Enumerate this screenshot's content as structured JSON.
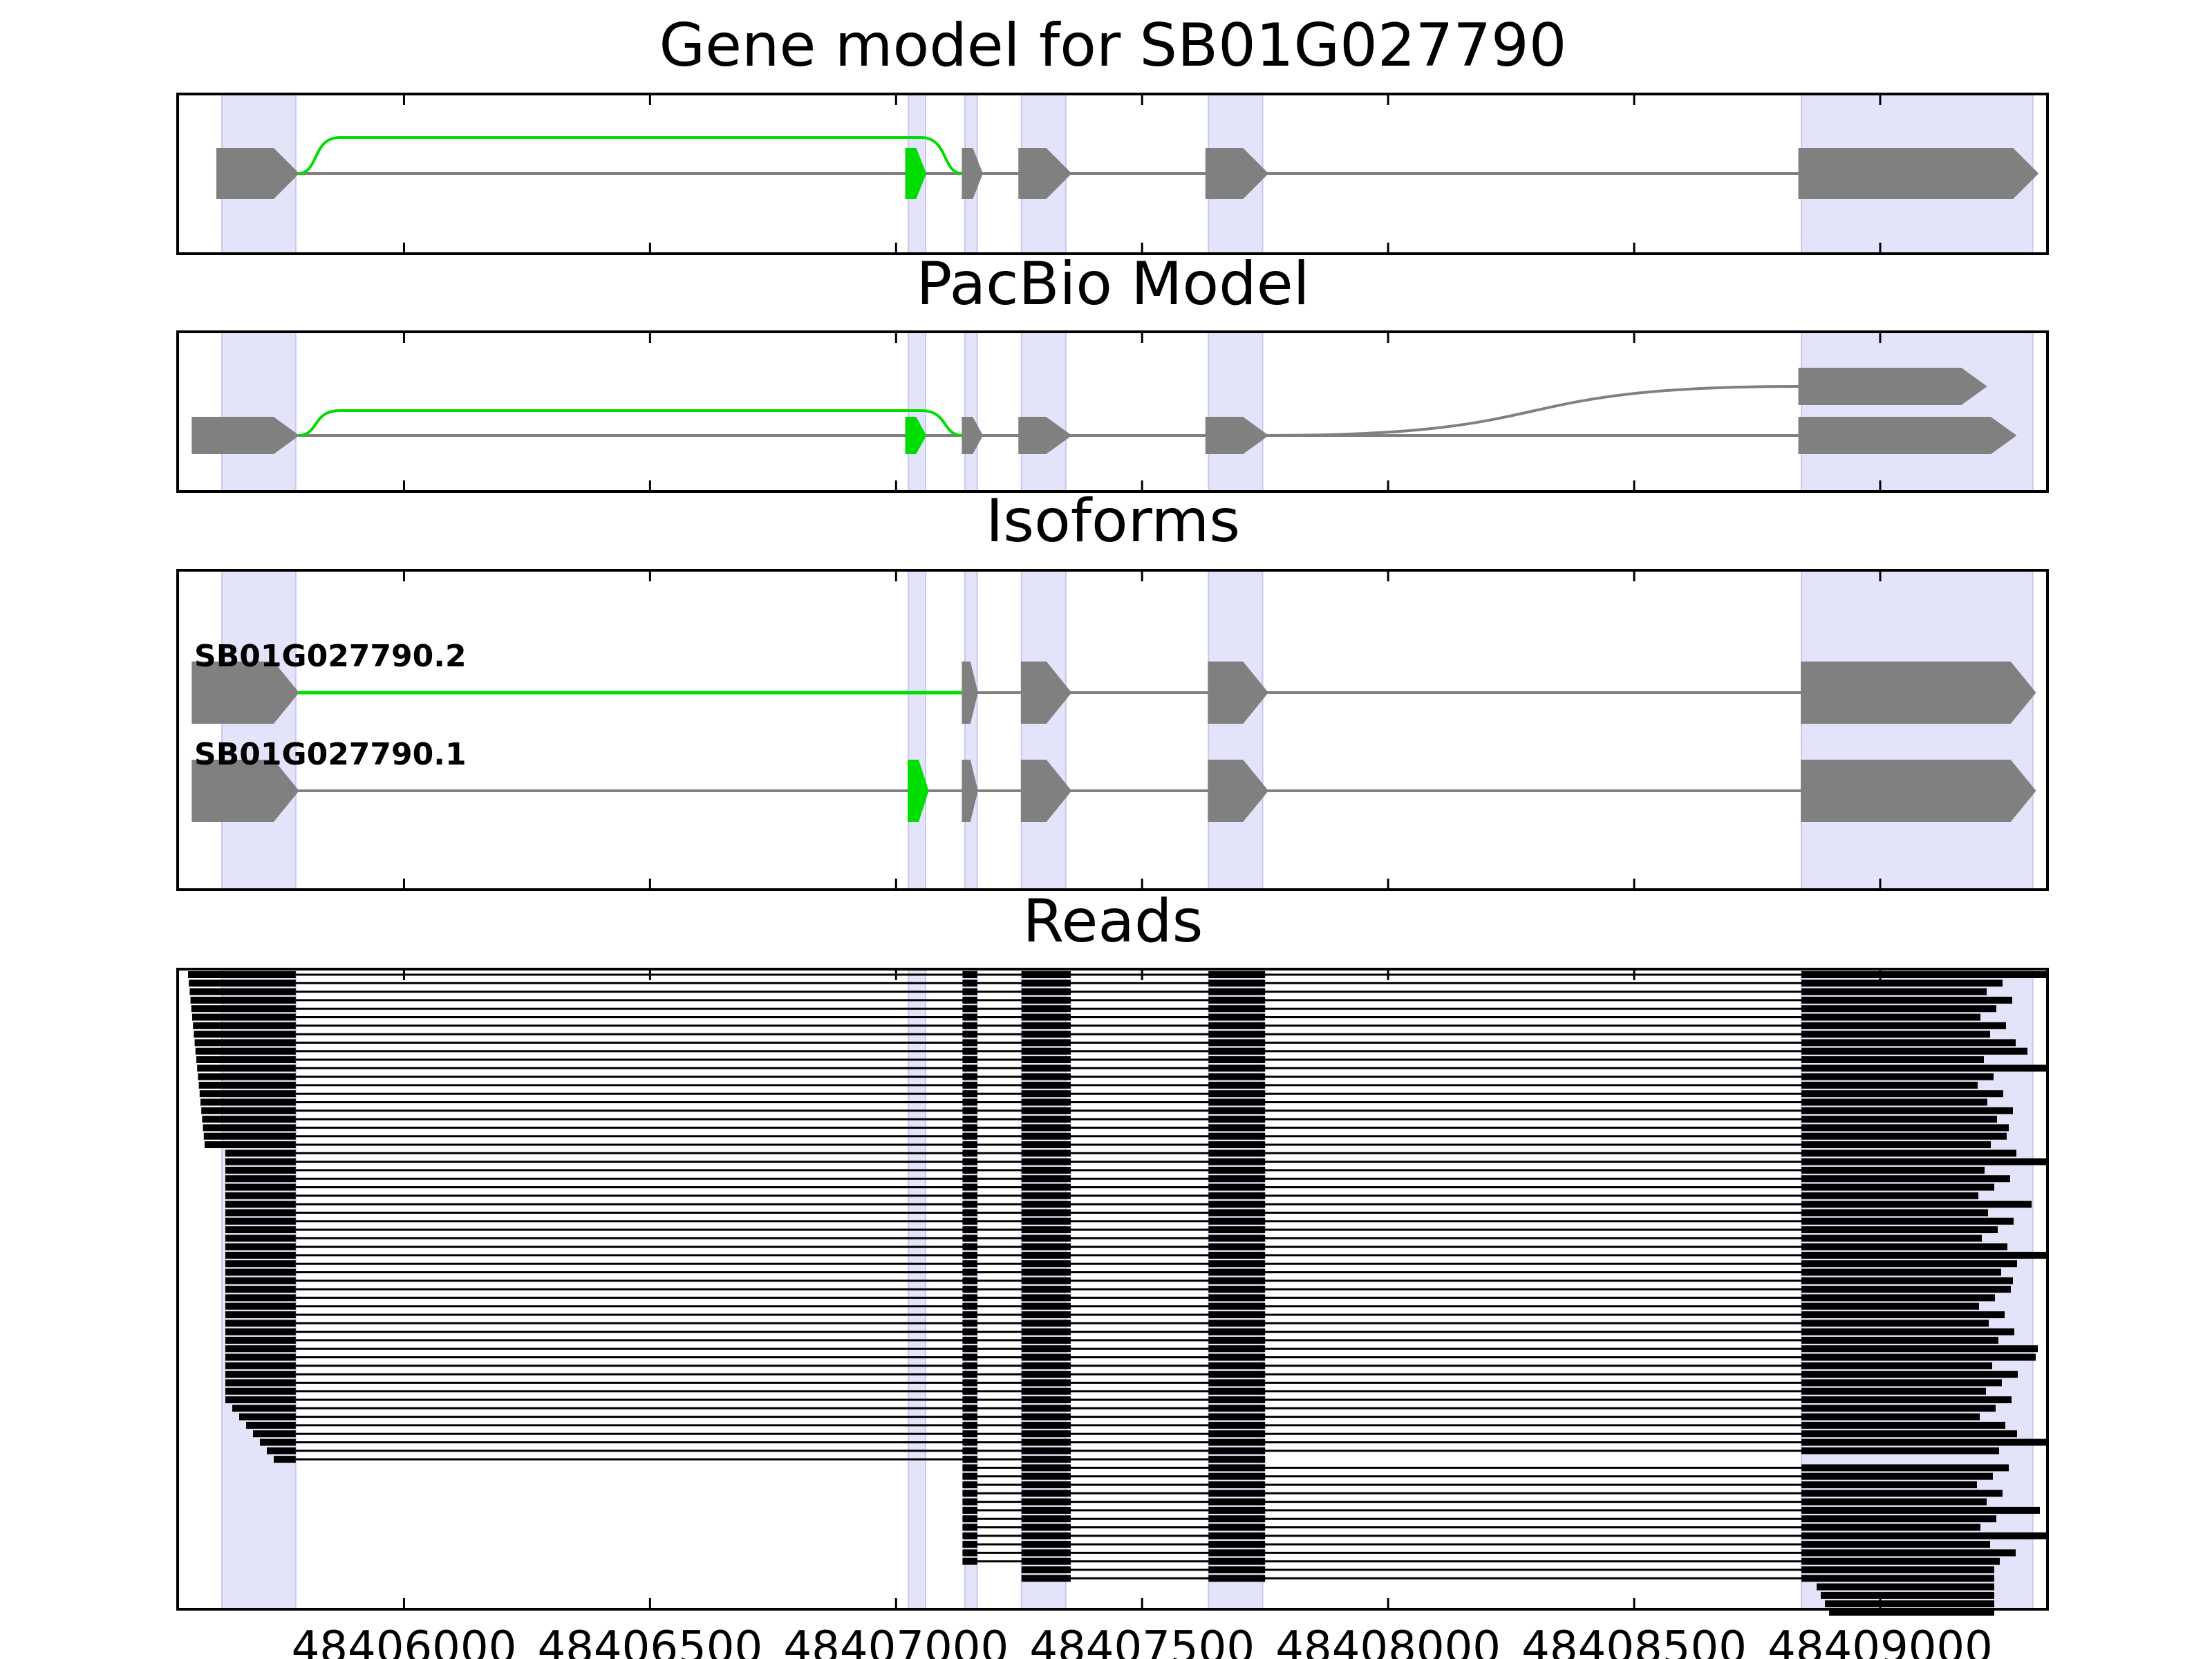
{
  "colors": {
    "exon": "#808080",
    "intron": "#808080",
    "alt_splice": "#00dd00",
    "highlight": "#e3e3fa",
    "read": "#000000",
    "frame": "#000000"
  },
  "panels": {
    "gene_model": {
      "title": "Gene model for SB01G027790"
    },
    "pacbio": {
      "title": "PacBio Model"
    },
    "isoforms": {
      "title": "Isoforms"
    },
    "reads": {
      "title": "Reads"
    }
  },
  "chart_data": {
    "type": "gene-model-tracks",
    "x_range": [
      48405540,
      48409340
    ],
    "x_ticks": [
      48406000,
      48406500,
      48407000,
      48407500,
      48408000,
      48408500,
      48409000
    ],
    "x_tick_labels": [
      "48406000",
      "48406500",
      "48407000",
      "48407500",
      "48408000",
      "48408500",
      "48409000"
    ],
    "highlight_regions": [
      [
        48405630,
        48405780
      ],
      [
        48407025,
        48407060
      ],
      [
        48407140,
        48407165
      ],
      [
        48407255,
        48407345
      ],
      [
        48407635,
        48407745
      ],
      [
        48408840,
        48409310
      ]
    ],
    "gene_model": {
      "exons": [
        [
          48405620,
          48405785
        ],
        [
          48407020,
          48407060
        ],
        [
          48407135,
          48407175
        ],
        [
          48407250,
          48407355
        ],
        [
          48407630,
          48407755
        ],
        [
          48408835,
          48409320
        ]
      ],
      "green_exon": [
        48407020,
        48407060
      ],
      "alt_junction": [
        48405785,
        48407135
      ]
    },
    "pacbio_model": {
      "main_exons": [
        [
          48405570,
          48405785
        ],
        [
          48407020,
          48407060
        ],
        [
          48407135,
          48407175
        ],
        [
          48407250,
          48407355
        ],
        [
          48407630,
          48407755
        ],
        [
          48408835,
          48409275
        ]
      ],
      "alt_end_exon": [
        48408835,
        48409215
      ],
      "green_exon": [
        48407020,
        48407060
      ],
      "alt_junction": [
        48405785,
        48407135
      ]
    },
    "isoforms": [
      {
        "name": "SB01G027790.2",
        "exons": [
          [
            48405570,
            48405785
          ],
          [
            48407135,
            48407165
          ],
          [
            48407255,
            48407355
          ],
          [
            48407635,
            48407755
          ],
          [
            48408840,
            48409315
          ]
        ],
        "green_intron": [
          48405785,
          48407135
        ]
      },
      {
        "name": "SB01G027790.1",
        "exons": [
          [
            48405570,
            48405785
          ],
          [
            48407025,
            48407065
          ],
          [
            48407135,
            48407165
          ],
          [
            48407255,
            48407355
          ],
          [
            48407635,
            48407755
          ],
          [
            48408840,
            48409315
          ]
        ],
        "green_exon": [
          48407025,
          48407065
        ]
      }
    ],
    "reads": {
      "count": 70,
      "exon_blocks": [
        [
          48407135,
          48407165
        ],
        [
          48407255,
          48407355
        ],
        [
          48407635,
          48407750
        ]
      ],
      "first_exon_end": 48405780,
      "last_exon_start": 48408840
    }
  }
}
